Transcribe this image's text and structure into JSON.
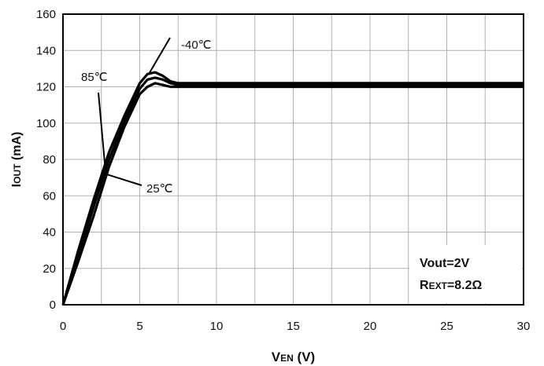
{
  "chart_data": {
    "type": "line",
    "title": "",
    "xlabel": {
      "main": "V",
      "sub": "EN",
      "unit": " (V)"
    },
    "ylabel": {
      "main": "I",
      "sub": "OUT",
      "unit": " (mA)"
    },
    "xlim": [
      0,
      30
    ],
    "ylim": [
      0,
      160
    ],
    "x_ticks": [
      0,
      5,
      10,
      15,
      20,
      25,
      30
    ],
    "y_ticks": [
      0,
      20,
      40,
      60,
      80,
      100,
      120,
      140,
      160
    ],
    "grid": true,
    "legend": "none",
    "line_color": "#000000",
    "series": [
      {
        "name": "-40℃",
        "x": [
          0,
          1,
          2,
          3,
          4,
          5,
          5.5,
          6,
          6.5,
          7,
          7.5,
          10,
          15,
          20,
          25,
          30
        ],
        "y": [
          0,
          30,
          58,
          84,
          104,
          122,
          127,
          128,
          126,
          123,
          122,
          122,
          122,
          122,
          122,
          122
        ]
      },
      {
        "name": "25℃",
        "x": [
          0,
          1,
          2,
          3,
          4,
          5,
          5.5,
          6,
          6.5,
          7,
          7.5,
          10,
          15,
          20,
          25,
          30
        ],
        "y": [
          0,
          27,
          54,
          80,
          101,
          119,
          124,
          125,
          124,
          122,
          121,
          121,
          121,
          121,
          121,
          121
        ]
      },
      {
        "name": "85℃",
        "x": [
          0,
          1,
          2,
          3,
          4,
          5,
          5.5,
          6,
          6.5,
          7,
          7.5,
          10,
          15,
          20,
          25,
          30
        ],
        "y": [
          0,
          24,
          49,
          76,
          98,
          116,
          120,
          122,
          121,
          120,
          120,
          120,
          120,
          120,
          120,
          120
        ]
      }
    ],
    "annotations": [
      {
        "text": "-40℃",
        "series": "-40℃"
      },
      {
        "text": "85℃",
        "series": "85℃"
      },
      {
        "text": "25℃",
        "series": "25℃"
      }
    ],
    "conditions": [
      {
        "main": "Vout=2V",
        "sub": ""
      },
      {
        "main": "R",
        "sub": "EXT",
        "suffix": "=8.2Ω"
      }
    ]
  }
}
